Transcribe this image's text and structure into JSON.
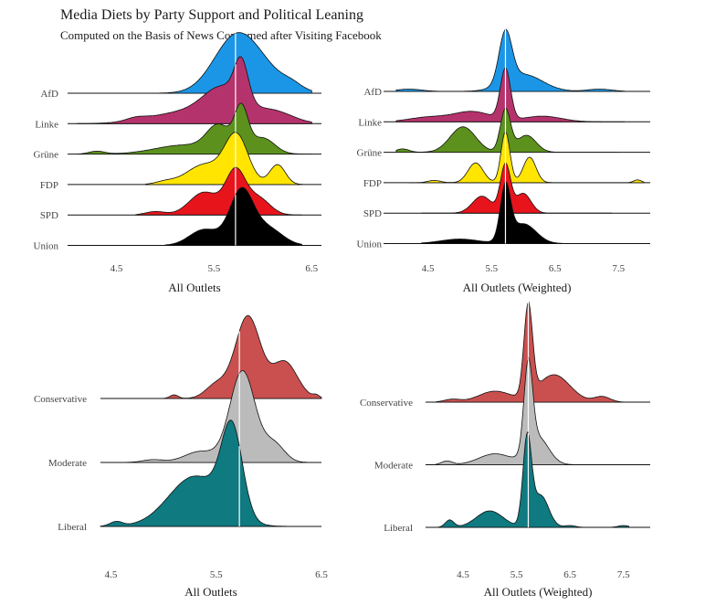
{
  "title": "Media Diets by Party Support and Political Leaning",
  "subtitle": "Computed on the Basis of News Consumed after Visiting Facebook",
  "chart_data": [
    {
      "type": "area",
      "variant": "ridgeline",
      "xlabel": "All Outlets",
      "x_ticks": [
        "4.5",
        "5.5",
        "6.5"
      ],
      "xlim": [
        4.0,
        6.6
      ],
      "reference_line_x": 5.72,
      "categories": [
        "AfD",
        "Linke",
        "Grüne",
        "FDP",
        "SPD",
        "Union"
      ],
      "series": [
        {
          "name": "AfD",
          "color": "#1b96e6",
          "peaks": [
            [
              5.7,
              0.8,
              0.22
            ],
            [
              5.95,
              0.4,
              0.25
            ],
            [
              6.3,
              0.08,
              0.1
            ]
          ],
          "range": [
            4.7,
            6.5
          ]
        },
        {
          "name": "Linke",
          "color": "#b5336c",
          "peaks": [
            [
              5.2,
              0.2,
              0.35
            ],
            [
              5.6,
              0.55,
              0.2
            ],
            [
              5.78,
              0.7,
              0.07
            ],
            [
              6.1,
              0.22,
              0.2
            ],
            [
              4.7,
              0.05,
              0.1
            ]
          ],
          "range": [
            4.1,
            6.5
          ]
        },
        {
          "name": "Grüne",
          "color": "#5c911e",
          "peaks": [
            [
              5.2,
              0.16,
              0.3
            ],
            [
              5.55,
              0.45,
              0.12
            ],
            [
              5.78,
              0.75,
              0.07
            ],
            [
              6.0,
              0.28,
              0.12
            ],
            [
              4.3,
              0.05,
              0.08
            ]
          ],
          "range": [
            4.1,
            6.5
          ]
        },
        {
          "name": "FDP",
          "color": "#ffe500",
          "peaks": [
            [
              5.4,
              0.35,
              0.18
            ],
            [
              5.73,
              0.85,
              0.12
            ],
            [
              6.15,
              0.35,
              0.08
            ],
            [
              5.0,
              0.05,
              0.1
            ]
          ],
          "range": [
            4.8,
            6.4
          ]
        },
        {
          "name": "SPD",
          "color": "#e8141c",
          "peaks": [
            [
              5.4,
              0.4,
              0.15
            ],
            [
              5.72,
              0.75,
              0.1
            ],
            [
              5.95,
              0.3,
              0.12
            ],
            [
              4.9,
              0.06,
              0.1
            ]
          ],
          "range": [
            4.7,
            6.4
          ]
        },
        {
          "name": "Union",
          "color": "#000000",
          "peaks": [
            [
              5.4,
              0.28,
              0.15
            ],
            [
              5.78,
              0.95,
              0.12
            ],
            [
              6.05,
              0.3,
              0.15
            ]
          ],
          "range": [
            5.0,
            6.4
          ]
        }
      ]
    },
    {
      "type": "area",
      "variant": "ridgeline",
      "xlabel": "All Outlets (Weighted)",
      "x_ticks": [
        "4.5",
        "5.5",
        "6.5",
        "7.5"
      ],
      "xlim": [
        3.8,
        8.0
      ],
      "reference_line_x": 5.72,
      "categories": [
        "AfD",
        "Linke",
        "Grüne",
        "FDP",
        "SPD",
        "Union"
      ],
      "series": [
        {
          "name": "AfD",
          "color": "#1b96e6",
          "peaks": [
            [
              5.72,
              0.9,
              0.1
            ],
            [
              6.0,
              0.3,
              0.3
            ],
            [
              4.2,
              0.04,
              0.2
            ],
            [
              7.2,
              0.04,
              0.2
            ]
          ],
          "range": [
            4.0,
            7.6
          ]
        },
        {
          "name": "Linke",
          "color": "#b5336c",
          "peaks": [
            [
              5.72,
              0.9,
              0.08
            ],
            [
              5.2,
              0.18,
              0.3
            ],
            [
              4.5,
              0.08,
              0.3
            ],
            [
              6.3,
              0.1,
              0.3
            ]
          ],
          "range": [
            4.0,
            7.6
          ]
        },
        {
          "name": "Grüne",
          "color": "#5c911e",
          "peaks": [
            [
              5.72,
              0.75,
              0.08
            ],
            [
              5.05,
              0.45,
              0.2
            ],
            [
              6.05,
              0.3,
              0.15
            ],
            [
              4.1,
              0.06,
              0.1
            ]
          ],
          "range": [
            4.0,
            7.5
          ]
        },
        {
          "name": "FDP",
          "color": "#ffe500",
          "peaks": [
            [
              5.72,
              0.9,
              0.07
            ],
            [
              5.25,
              0.35,
              0.12
            ],
            [
              6.1,
              0.45,
              0.1
            ],
            [
              7.8,
              0.05,
              0.06
            ],
            [
              4.6,
              0.04,
              0.1
            ]
          ],
          "range": [
            4.2,
            7.9
          ]
        },
        {
          "name": "SPD",
          "color": "#e8141c",
          "peaks": [
            [
              5.72,
              0.85,
              0.08
            ],
            [
              5.35,
              0.3,
              0.15
            ],
            [
              6.0,
              0.35,
              0.12
            ]
          ],
          "range": [
            4.4,
            7.4
          ]
        },
        {
          "name": "Union",
          "color": "#000000",
          "peaks": [
            [
              5.72,
              0.95,
              0.08
            ],
            [
              6.0,
              0.35,
              0.2
            ],
            [
              5.0,
              0.08,
              0.3
            ]
          ],
          "range": [
            4.4,
            7.4
          ]
        }
      ]
    },
    {
      "type": "area",
      "variant": "ridgeline",
      "xlabel": "All Outlets",
      "x_ticks": [
        "4.5",
        "5.5",
        "6.5"
      ],
      "xlim": [
        4.4,
        6.5
      ],
      "reference_line_x": 5.72,
      "categories": [
        "Conservative",
        "Moderate",
        "Liberal"
      ],
      "series": [
        {
          "name": "Conservative",
          "color": "#c9504f",
          "peaks": [
            [
              5.8,
              0.9,
              0.12
            ],
            [
              6.15,
              0.4,
              0.12
            ],
            [
              5.5,
              0.15,
              0.1
            ],
            [
              5.1,
              0.04,
              0.04
            ],
            [
              6.45,
              0.03,
              0.03
            ]
          ],
          "range": [
            4.9,
            6.5
          ]
        },
        {
          "name": "Moderate",
          "color": "#bbbbbb",
          "peaks": [
            [
              5.75,
              1.0,
              0.12
            ],
            [
              6.05,
              0.2,
              0.1
            ],
            [
              5.35,
              0.12,
              0.15
            ],
            [
              4.9,
              0.03,
              0.1
            ]
          ],
          "range": [
            4.6,
            6.5
          ]
        },
        {
          "name": "Liberal",
          "color": "#0f7a80",
          "peaks": [
            [
              5.65,
              0.95,
              0.1
            ],
            [
              5.3,
              0.55,
              0.25
            ],
            [
              4.55,
              0.05,
              0.06
            ]
          ],
          "range": [
            4.4,
            6.5
          ]
        }
      ]
    },
    {
      "type": "area",
      "variant": "ridgeline",
      "xlabel": "All Outlets (Weighted)",
      "x_ticks": [
        "4.5",
        "5.5",
        "6.5",
        "7.5"
      ],
      "xlim": [
        3.8,
        8.0
      ],
      "reference_line_x": 5.72,
      "categories": [
        "Conservative",
        "Moderate",
        "Liberal"
      ],
      "series": [
        {
          "name": "Conservative",
          "color": "#c9504f",
          "peaks": [
            [
              5.72,
              1.0,
              0.08
            ],
            [
              6.2,
              0.3,
              0.3
            ],
            [
              5.1,
              0.12,
              0.3
            ],
            [
              7.1,
              0.06,
              0.15
            ],
            [
              4.3,
              0.03,
              0.15
            ]
          ],
          "range": [
            4.0,
            7.9
          ]
        },
        {
          "name": "Moderate",
          "color": "#bbbbbb",
          "peaks": [
            [
              5.72,
              0.95,
              0.08
            ],
            [
              5.9,
              0.3,
              0.2
            ],
            [
              5.1,
              0.12,
              0.3
            ],
            [
              4.2,
              0.04,
              0.1
            ]
          ],
          "range": [
            4.0,
            7.5
          ]
        },
        {
          "name": "Liberal",
          "color": "#0f7a80",
          "peaks": [
            [
              5.7,
              0.95,
              0.08
            ],
            [
              5.95,
              0.35,
              0.15
            ],
            [
              5.0,
              0.18,
              0.25
            ],
            [
              4.25,
              0.08,
              0.08
            ],
            [
              6.5,
              0.02,
              0.1
            ],
            [
              7.5,
              0.02,
              0.1
            ]
          ],
          "range": [
            4.0,
            7.6
          ]
        }
      ]
    }
  ]
}
